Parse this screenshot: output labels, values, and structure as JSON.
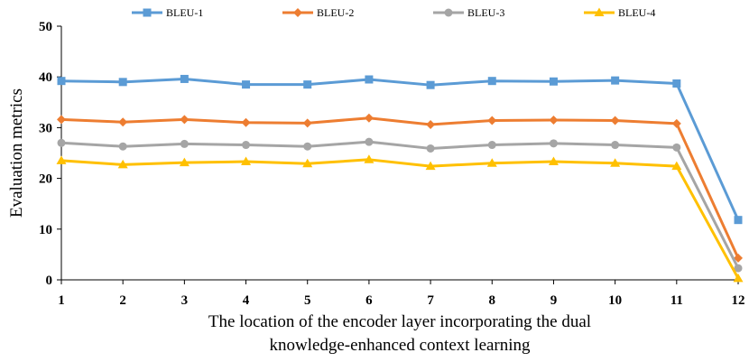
{
  "chart_data": {
    "type": "line",
    "title": "",
    "xlabel_lines": [
      "The location of the encoder layer incorporating the dual",
      "knowledge-enhanced context learning"
    ],
    "ylabel": "Evaluation metrics",
    "categories": [
      "1",
      "2",
      "3",
      "4",
      "5",
      "6",
      "7",
      "8",
      "9",
      "10",
      "11",
      "12"
    ],
    "ylim": [
      0,
      50
    ],
    "yticks": [
      "0",
      "10",
      "20",
      "30",
      "40",
      "50"
    ],
    "grid": false,
    "legend_position": "top",
    "series": [
      {
        "name": "BLEU-1",
        "color": "#5B9BD5",
        "marker": "square",
        "values": [
          39.2,
          39.0,
          39.6,
          38.5,
          38.5,
          39.5,
          38.4,
          39.2,
          39.1,
          39.3,
          38.7,
          11.8
        ]
      },
      {
        "name": "BLEU-2",
        "color": "#ED7D31",
        "marker": "diamond",
        "values": [
          31.6,
          31.1,
          31.6,
          31.0,
          30.9,
          31.9,
          30.6,
          31.4,
          31.5,
          31.4,
          30.8,
          4.3
        ]
      },
      {
        "name": "BLEU-3",
        "color": "#A5A5A5",
        "marker": "circle",
        "values": [
          27.0,
          26.3,
          26.8,
          26.6,
          26.3,
          27.2,
          25.9,
          26.6,
          26.9,
          26.6,
          26.1,
          2.3
        ]
      },
      {
        "name": "BLEU-4",
        "color": "#FFC000",
        "marker": "triangle",
        "values": [
          23.5,
          22.7,
          23.1,
          23.3,
          22.9,
          23.7,
          22.4,
          23.0,
          23.3,
          23.0,
          22.4,
          0.3
        ]
      }
    ]
  }
}
